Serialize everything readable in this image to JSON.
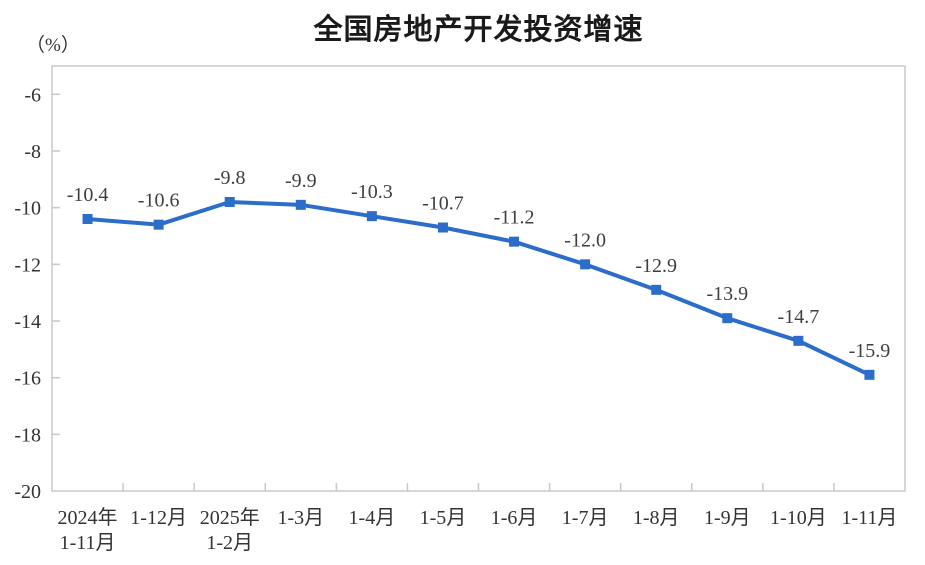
{
  "chart_data": {
    "type": "line",
    "title": "全国房地产开发投资增速",
    "unit_label": "（%）",
    "xlabel": "",
    "ylabel": "（%）",
    "categories": [
      "2024年\n1-11月",
      "1-12月",
      "2025年\n1-2月",
      "1-3月",
      "1-4月",
      "1-5月",
      "1-6月",
      "1-7月",
      "1-8月",
      "1-9月",
      "1-10月",
      "1-11月"
    ],
    "values": [
      -10.4,
      -10.6,
      -9.8,
      -9.9,
      -10.3,
      -10.7,
      -11.2,
      -12.0,
      -12.9,
      -13.9,
      -14.7,
      -15.9
    ],
    "data_labels": [
      "-10.4",
      "-10.6",
      "-9.8",
      "-9.9",
      "-10.3",
      "-10.7",
      "-11.2",
      "-12.0",
      "-12.9",
      "-13.9",
      "-14.7",
      "-15.9"
    ],
    "ylim": [
      -20,
      -5
    ],
    "yticks": [
      -6,
      -8,
      -10,
      -12,
      -14,
      -16,
      -18,
      -20
    ],
    "grid": false,
    "legend": "none",
    "marker": "square",
    "series_color": "#2C6DC9",
    "axis_color": "#C9C9C9",
    "tick_label_color": "#333333",
    "label_color": "#3F3F3F"
  }
}
